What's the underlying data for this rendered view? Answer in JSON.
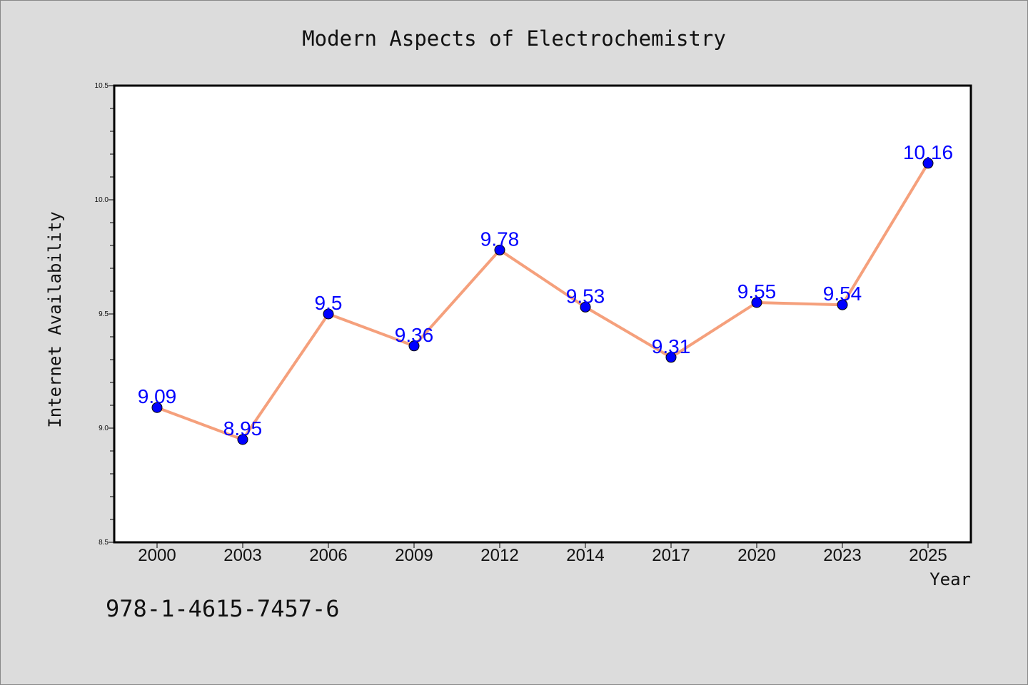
{
  "chart_data": {
    "type": "line",
    "title": "Modern Aspects of Electrochemistry",
    "xlabel": "Year",
    "ylabel": "Internet Availability",
    "categories": [
      "2000",
      "2003",
      "2006",
      "2009",
      "2012",
      "2014",
      "2017",
      "2020",
      "2023",
      "2025"
    ],
    "series": [
      {
        "values": [
          9.09,
          8.95,
          9.5,
          9.36,
          9.78,
          9.53,
          9.31,
          9.55,
          9.54,
          10.16
        ],
        "labels": [
          "9.09",
          "8.95",
          "9.5",
          "9.36",
          "9.78",
          "9.53",
          "9.31",
          "9.55",
          "9.54",
          "10.16"
        ],
        "line_color": "#f5a07c",
        "marker_color": "#0000ff"
      }
    ],
    "ylim": [
      8.5,
      10.5
    ],
    "yticks": [
      "8.5",
      "9.0",
      "9.5",
      "10.0",
      "10.5"
    ],
    "grid": false,
    "data_label_color": "#0000ff"
  },
  "annotation": {
    "isbn": "978-1-4615-7457-6"
  },
  "colors": {
    "background": "#dcdcdc",
    "plot_area": "#ffffff",
    "axis": "#000000"
  }
}
